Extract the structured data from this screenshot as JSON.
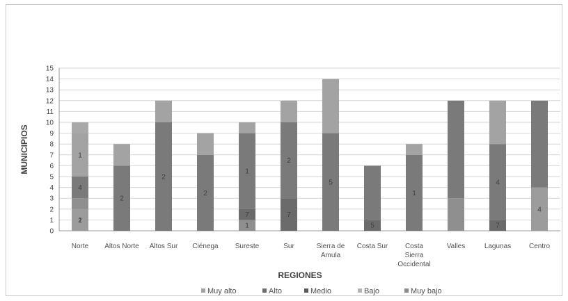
{
  "chart_data": {
    "type": "bar",
    "stacked": true,
    "title": "",
    "xlabel": "REGIONES",
    "ylabel": "MUNICIPIOS",
    "ylim": [
      0,
      15
    ],
    "yticks": [
      0,
      1,
      2,
      3,
      4,
      5,
      6,
      7,
      8,
      9,
      10,
      11,
      12,
      13,
      14,
      15
    ],
    "grid": true,
    "legend_position": "bottom",
    "categories": [
      [
        "Norte"
      ],
      [
        "Altos Norte"
      ],
      [
        "Altos Sur"
      ],
      [
        "Ciénega"
      ],
      [
        "Sureste"
      ],
      [
        "Sur"
      ],
      [
        "Sierra de",
        "Amula"
      ],
      [
        "Costa Sur"
      ],
      [
        "Costa",
        "Sierra",
        "Occidental"
      ],
      [
        "Valles"
      ],
      [
        "Lagunas"
      ],
      [
        "Centro"
      ]
    ],
    "series": [
      {
        "name": "Muy bajo",
        "color": "#9c9c9c",
        "values": [
          2,
          0,
          0,
          0,
          0,
          0,
          0,
          0,
          0,
          0,
          0,
          4
        ]
      },
      {
        "name": "Bajo",
        "color": "#8f8f8f",
        "values": [
          1,
          0,
          0,
          0,
          1,
          0,
          0,
          0,
          0,
          3,
          0,
          0
        ]
      },
      {
        "name": "Medio",
        "color": "#6b6b6b",
        "values": [
          0,
          0,
          0,
          0,
          1,
          3,
          0,
          1,
          0,
          0,
          1,
          0
        ]
      },
      {
        "name": "Alto",
        "color": "#7a7a7a",
        "values": [
          2,
          6,
          10,
          7,
          7,
          7,
          9,
          5,
          7,
          9,
          7,
          8
        ]
      },
      {
        "name": "Muy alto",
        "color": "#a3a3a3",
        "values": [
          4,
          2,
          2,
          2,
          1,
          2,
          5,
          0,
          1,
          0,
          4,
          0
        ]
      }
    ],
    "extra_top": [
      {
        "category_index": 0,
        "value": 1
      }
    ],
    "segment_labels": [
      [
        "2",
        "1",
        "",
        "2",
        "4",
        "1"
      ],
      [
        "",
        "",
        "",
        "6",
        "2"
      ],
      [
        "",
        "",
        "",
        "10",
        "2"
      ],
      [
        "",
        "",
        "",
        "7",
        "2"
      ],
      [
        "",
        "1",
        "1",
        "7",
        "1"
      ],
      [
        "",
        "",
        "3",
        "7",
        "2"
      ],
      [
        "",
        "",
        "",
        "9",
        "5"
      ],
      [
        "",
        "",
        "1",
        "5",
        ""
      ],
      [
        "",
        "",
        "",
        "7",
        "1"
      ],
      [
        "",
        "3",
        "",
        "9",
        ""
      ],
      [
        "",
        "",
        "1",
        "7",
        "4"
      ],
      [
        "4",
        "",
        "",
        "8",
        ""
      ]
    ],
    "legend": [
      {
        "label": "Muy alto",
        "color": "#a3a3a3"
      },
      {
        "label": "Alto",
        "color": "#6e6e6e"
      },
      {
        "label": "Medio",
        "color": "#5a5a5a"
      },
      {
        "label": "Bajo",
        "color": "#b5b5b5"
      },
      {
        "label": "Muy bajo",
        "color": "#8a8a8a"
      }
    ]
  }
}
